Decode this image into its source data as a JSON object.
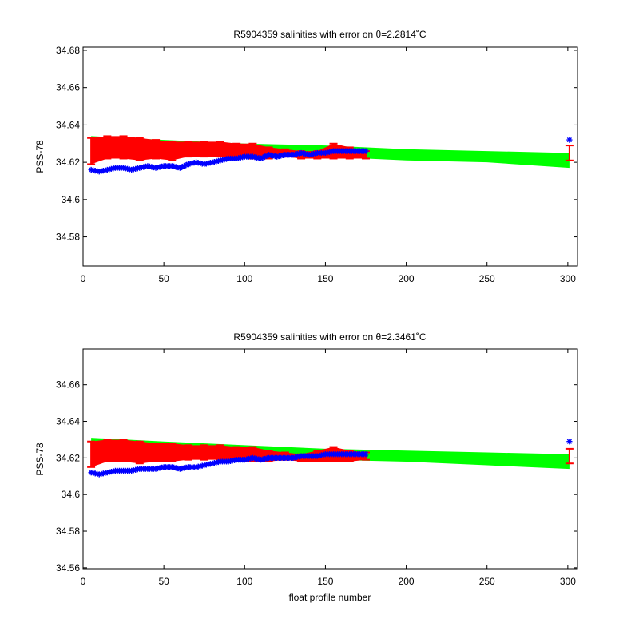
{
  "chart_data": [
    {
      "type": "scatter",
      "title": "R5904359 salinities with error on θ=2.2814˚C",
      "xlabel": "",
      "ylabel": "PSS-78",
      "xlim": [
        0,
        306
      ],
      "ylim": [
        34.5644,
        34.6817
      ],
      "xticks": [
        0,
        50,
        100,
        150,
        200,
        250,
        300
      ],
      "xtick_labels": [
        "0",
        "50",
        "100",
        "150",
        "200",
        "250",
        "300"
      ],
      "yticks": [
        34.58,
        34.6,
        34.62,
        34.64,
        34.66,
        34.68
      ],
      "ytick_labels": [
        "34.58",
        "34.6",
        "34.62",
        "34.64",
        "34.66",
        "34.68"
      ],
      "grid": false,
      "series": [
        {
          "role": "mapped-error-band",
          "color": "#00ff00",
          "x": [
            5,
            50,
            100,
            150,
            200,
            250,
            301
          ],
          "upper": [
            34.634,
            34.632,
            34.63,
            34.629,
            34.627,
            34.626,
            34.625
          ],
          "lower": [
            34.629,
            34.627,
            34.626,
            34.623,
            34.621,
            34.62,
            34.617
          ]
        },
        {
          "role": "calibrated-with-errorbars",
          "color": "#ff0000",
          "x": [
            5,
            15,
            25,
            35,
            45,
            55,
            65,
            75,
            85,
            95,
            105,
            115,
            125,
            135,
            145,
            155,
            165,
            175,
            301
          ],
          "values": [
            34.626,
            34.628,
            34.628,
            34.627,
            34.627,
            34.626,
            34.627,
            34.627,
            34.627,
            34.626,
            34.626,
            34.625,
            34.625,
            34.624,
            34.624,
            34.626,
            34.625,
            34.624,
            34.625
          ],
          "errors": [
            0.007,
            0.006,
            0.006,
            0.006,
            0.005,
            0.005,
            0.004,
            0.004,
            0.004,
            0.004,
            0.004,
            0.003,
            0.002,
            0.002,
            0.002,
            0.004,
            0.003,
            0.002,
            0.004
          ]
        },
        {
          "role": "raw",
          "color": "#0000ff",
          "marker": "*",
          "x": [
            5,
            10,
            15,
            20,
            25,
            30,
            35,
            40,
            45,
            50,
            55,
            60,
            65,
            70,
            75,
            80,
            85,
            90,
            95,
            100,
            105,
            110,
            115,
            120,
            125,
            130,
            135,
            140,
            145,
            150,
            155,
            160,
            165,
            170,
            175,
            301
          ],
          "values": [
            34.616,
            34.615,
            34.616,
            34.617,
            34.617,
            34.616,
            34.617,
            34.618,
            34.617,
            34.618,
            34.618,
            34.617,
            34.619,
            34.62,
            34.619,
            34.62,
            34.621,
            34.622,
            34.622,
            34.623,
            34.623,
            34.622,
            34.624,
            34.623,
            34.624,
            34.624,
            34.625,
            34.624,
            34.625,
            34.625,
            34.626,
            34.626,
            34.626,
            34.626,
            34.626,
            34.632
          ]
        }
      ]
    },
    {
      "type": "scatter",
      "title": "R5904359 salinities with error on θ=2.3461˚C",
      "xlabel": "float profile number",
      "ylabel": "PSS-78",
      "xlim": [
        0,
        306
      ],
      "ylim": [
        34.5595,
        34.6795
      ],
      "xticks": [
        0,
        50,
        100,
        150,
        200,
        250,
        300
      ],
      "xtick_labels": [
        "0",
        "50",
        "100",
        "150",
        "200",
        "250",
        "300"
      ],
      "yticks": [
        34.56,
        34.58,
        34.6,
        34.62,
        34.64,
        34.66
      ],
      "ytick_labels": [
        "34.56",
        "34.58",
        "34.6",
        "34.62",
        "34.64",
        "34.66"
      ],
      "grid": false,
      "series": [
        {
          "role": "mapped-error-band",
          "color": "#00ff00",
          "x": [
            5,
            50,
            100,
            150,
            200,
            250,
            301
          ],
          "upper": [
            34.631,
            34.629,
            34.627,
            34.625,
            34.624,
            34.623,
            34.622
          ],
          "lower": [
            34.625,
            34.623,
            34.621,
            34.619,
            34.618,
            34.616,
            34.614
          ]
        },
        {
          "role": "calibrated-with-errorbars",
          "color": "#ff0000",
          "x": [
            5,
            15,
            25,
            35,
            45,
            55,
            65,
            75,
            85,
            95,
            105,
            115,
            125,
            135,
            145,
            155,
            165,
            175,
            301
          ],
          "values": [
            34.622,
            34.624,
            34.624,
            34.623,
            34.623,
            34.623,
            34.623,
            34.623,
            34.623,
            34.622,
            34.622,
            34.621,
            34.621,
            34.62,
            34.621,
            34.622,
            34.621,
            34.621,
            34.621
          ],
          "errors": [
            0.007,
            0.006,
            0.006,
            0.006,
            0.005,
            0.005,
            0.004,
            0.004,
            0.004,
            0.004,
            0.004,
            0.003,
            0.002,
            0.002,
            0.003,
            0.004,
            0.003,
            0.002,
            0.004
          ]
        },
        {
          "role": "raw",
          "color": "#0000ff",
          "marker": "*",
          "x": [
            5,
            10,
            15,
            20,
            25,
            30,
            35,
            40,
            45,
            50,
            55,
            60,
            65,
            70,
            75,
            80,
            85,
            90,
            95,
            100,
            105,
            110,
            115,
            120,
            125,
            130,
            135,
            140,
            145,
            150,
            155,
            160,
            165,
            170,
            175,
            301
          ],
          "values": [
            34.612,
            34.611,
            34.612,
            34.613,
            34.613,
            34.613,
            34.614,
            34.614,
            34.614,
            34.615,
            34.615,
            34.614,
            34.615,
            34.615,
            34.616,
            34.617,
            34.618,
            34.618,
            34.619,
            34.619,
            34.62,
            34.619,
            34.62,
            34.62,
            34.62,
            34.62,
            34.621,
            34.621,
            34.621,
            34.622,
            34.622,
            34.622,
            34.622,
            34.622,
            34.622,
            34.629
          ]
        }
      ]
    }
  ]
}
